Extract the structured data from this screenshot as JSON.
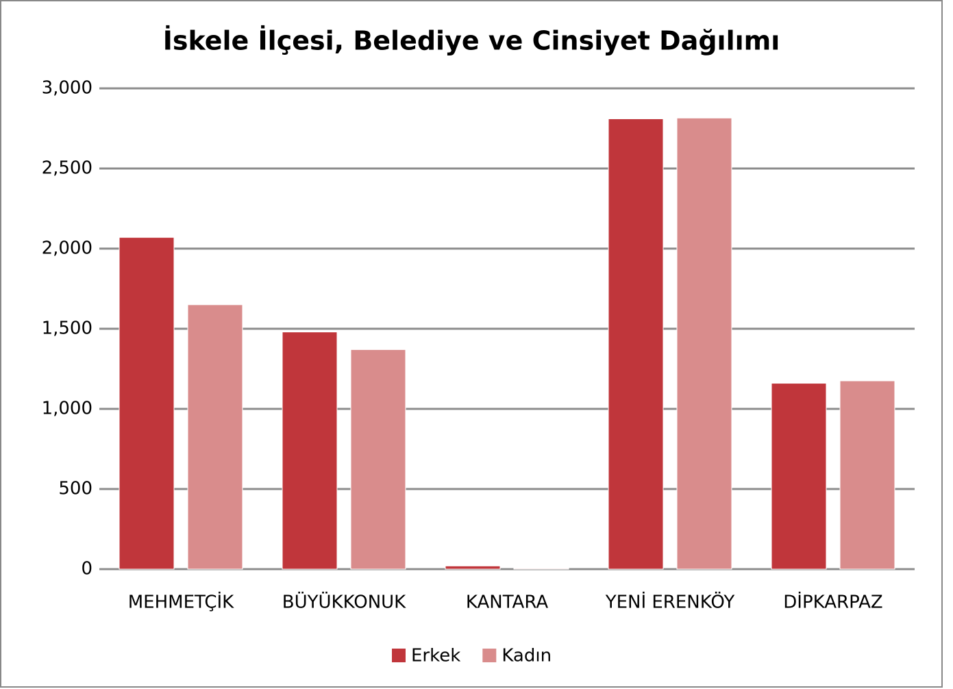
{
  "chart_data": {
    "type": "bar",
    "title": "İskele İlçesi, Belediye ve Cinsiyet Dağılımı",
    "categories": [
      "MEHMETÇİK",
      "BÜYÜKKONUK",
      "KANTARA",
      "YENİ ERENKÖY",
      "DİPKARPAZ"
    ],
    "series": [
      {
        "name": "Erkek",
        "color": "#c0363b",
        "values": [
          2070,
          1480,
          20,
          2810,
          1160
        ]
      },
      {
        "name": "Kadın",
        "color": "#d98c8c",
        "values": [
          1650,
          1370,
          5,
          2815,
          1175
        ]
      }
    ],
    "ylim": [
      0,
      3000
    ],
    "yticks": [
      0,
      500,
      {
        "value": 1000,
        "label": "1,000"
      },
      {
        "value": 1500,
        "label": "1,500"
      },
      {
        "value": 2000,
        "label": "2,000"
      },
      {
        "value": 2500,
        "label": "2,500"
      },
      {
        "value": 3000,
        "label": "3,000"
      }
    ],
    "grid": true,
    "legend": "bottom"
  }
}
